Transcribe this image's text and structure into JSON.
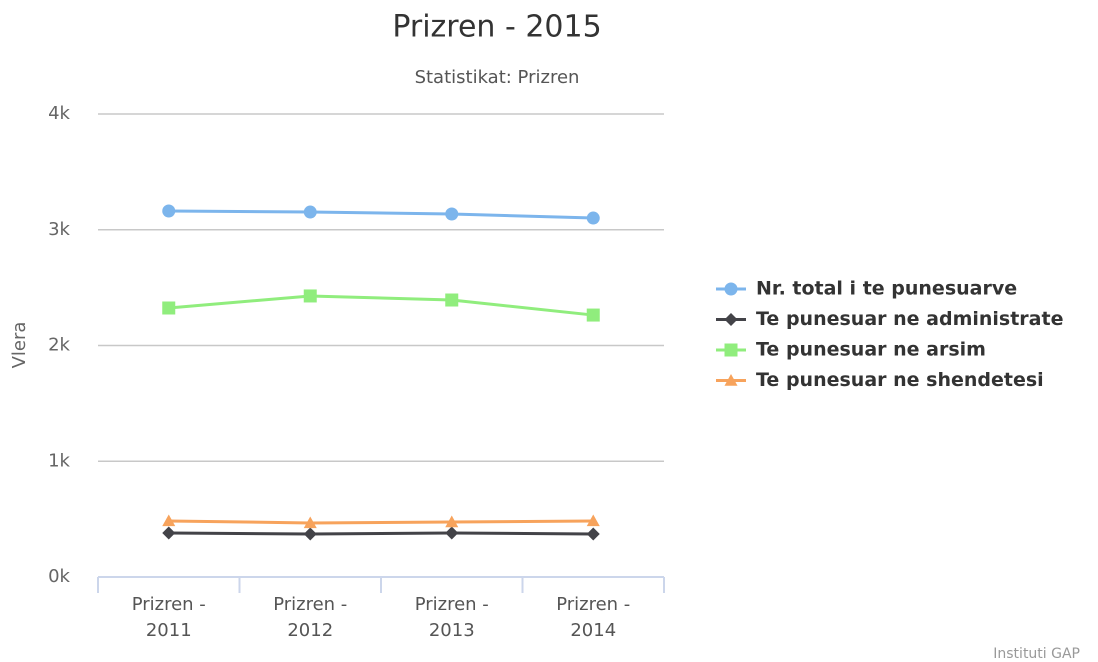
{
  "chart_data": {
    "type": "line",
    "title": "Prizren - 2015",
    "subtitle": "Statistikat: Prizren",
    "y_axis_label": "Vlera",
    "credits": "Instituti GAP",
    "categories": [
      "Prizren - 2011",
      "Prizren - 2012",
      "Prizren - 2013",
      "Prizren - 2014"
    ],
    "series": [
      {
        "name": "Nr. total i te punesuarve",
        "color": "#7cb5ec",
        "marker": "circle",
        "values": [
          3162,
          3153,
          3136,
          3101
        ]
      },
      {
        "name": "Te punesuar ne administrate",
        "color": "#434348",
        "marker": "diamond",
        "values": [
          380,
          371,
          380,
          371
        ]
      },
      {
        "name": "Te punesuar ne arsim",
        "color": "#90ed7d",
        "marker": "square",
        "values": [
          2324,
          2428,
          2393,
          2263
        ]
      },
      {
        "name": "Te punesuar ne shendetesi",
        "color": "#f7a35c",
        "marker": "triangle",
        "values": [
          484,
          467,
          475,
          484
        ]
      }
    ],
    "ylim": [
      0,
      4000
    ],
    "yticks": [
      {
        "value": 0,
        "label": "0k"
      },
      {
        "value": 1000,
        "label": "1k"
      },
      {
        "value": 2000,
        "label": "2k"
      },
      {
        "value": 3000,
        "label": "3k"
      },
      {
        "value": 4000,
        "label": "4k"
      }
    ],
    "grid": true,
    "legend": "right"
  }
}
